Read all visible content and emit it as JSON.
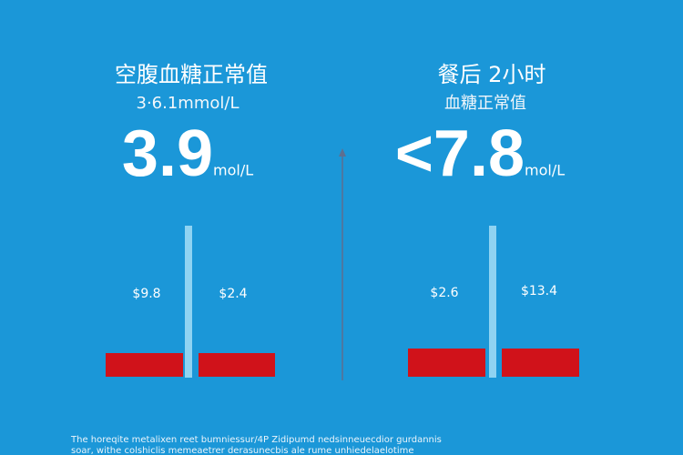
{
  "panels": [
    {
      "title": "空腹血糖正常值",
      "subtitle": "3·6.1mmol/L",
      "value": "3.9",
      "unit": "mol/L",
      "labels": [
        "$9.8",
        "$2.4"
      ]
    },
    {
      "title": "餐后 2小时",
      "subtitle": "血糖正常值",
      "value": "<7.8",
      "unit": "mol/L",
      "labels": [
        "$2.6",
        "$13.4"
      ]
    }
  ],
  "footer": [
    "The horeqite metalixen reet bumniessur/4P Zidipumd nedsinneuecdior gurdannis",
    "soar, withe colshiclis memeaetrer derasunecbis ale rume unhiedelaelotime"
  ]
}
